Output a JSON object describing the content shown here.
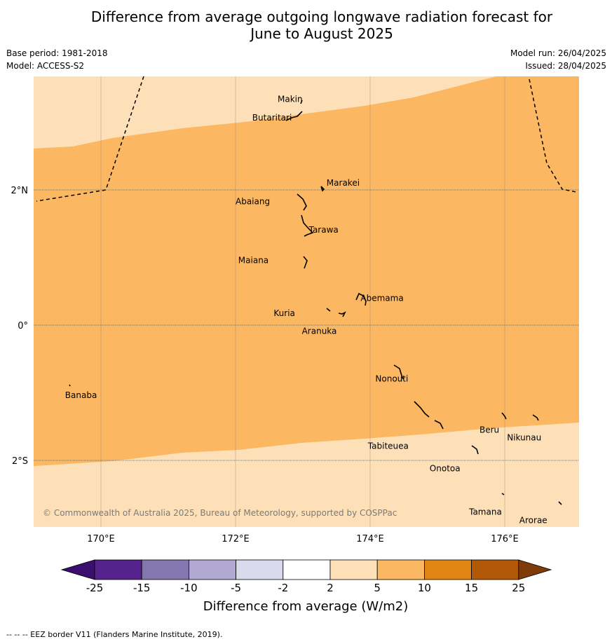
{
  "title": {
    "line1": "Difference from average outgoing longwave radiation forecast for",
    "line2": "June to August 2025"
  },
  "meta": {
    "base_period": "Base period: 1981-2018",
    "model": "Model: ACCESS-S2",
    "model_run": "Model run: 26/04/2025",
    "issued": "Issued: 28/04/2025"
  },
  "map": {
    "lon_range": [
      169,
      177.1
    ],
    "lat_range": [
      -3,
      3.7
    ],
    "x_ticks": [
      {
        "lon": 170,
        "label": "170°E"
      },
      {
        "lon": 172,
        "label": "172°E"
      },
      {
        "lon": 174,
        "label": "174°E"
      },
      {
        "lon": 176,
        "label": "176°E"
      }
    ],
    "y_ticks": [
      {
        "lat": 2,
        "label": "2°N"
      },
      {
        "lat": 0,
        "label": "0°"
      },
      {
        "lat": -2,
        "label": "2°S"
      }
    ],
    "islands": [
      {
        "name": "Makin",
        "lon": 173.0,
        "lat": 3.33
      },
      {
        "name": "Butaritari",
        "lon": 172.8,
        "lat": 3.1
      },
      {
        "name": "Marakei",
        "lon": 173.3,
        "lat": 2.0
      },
      {
        "name": "Abaiang",
        "lon": 173.0,
        "lat": 1.85
      },
      {
        "name": "Tarawa",
        "lon": 173.1,
        "lat": 1.4
      },
      {
        "name": "Maiana",
        "lon": 173.05,
        "lat": 0.95
      },
      {
        "name": "Abemama",
        "lon": 173.9,
        "lat": 0.4
      },
      {
        "name": "Kuria",
        "lon": 173.4,
        "lat": 0.22
      },
      {
        "name": "Aranuka",
        "lon": 173.6,
        "lat": 0.17
      },
      {
        "name": "Nonouti",
        "lon": 174.4,
        "lat": -0.65
      },
      {
        "name": "Banaba",
        "lon": 169.55,
        "lat": -0.87
      },
      {
        "name": "Tabiteuea",
        "lon": 174.8,
        "lat": -1.3
      },
      {
        "name": "Beru",
        "lon": 176.0,
        "lat": -1.3
      },
      {
        "name": "Nikunau",
        "lon": 176.45,
        "lat": -1.35
      },
      {
        "name": "Onotoa",
        "lon": 175.55,
        "lat": -1.8
      },
      {
        "name": "Tamana",
        "lon": 175.97,
        "lat": -2.5
      },
      {
        "name": "Arorae",
        "lon": 176.8,
        "lat": -2.65
      }
    ],
    "copyright": "© Commonwealth of Australia 2025, Bureau of Meteorology, supported by COSPPac",
    "anomaly_category": "2 to 5 and 5 to 10 W/m2"
  },
  "colorbar": {
    "label": "Difference from average (W/m2)",
    "ticks": [
      "-25",
      "-15",
      "-10",
      "-5",
      "-2",
      "2",
      "5",
      "10",
      "15",
      "25"
    ],
    "colors": [
      "#3b0f70",
      "#56238c",
      "#8477b0",
      "#b1a9d2",
      "#d9d9ec",
      "#ffffff",
      "#fde0b8",
      "#fbb762",
      "#e08512",
      "#b35806",
      "#7f3b08"
    ]
  },
  "footer": "--  --  -- EEZ border V11 (Flanders Marine Institute, 2019)."
}
